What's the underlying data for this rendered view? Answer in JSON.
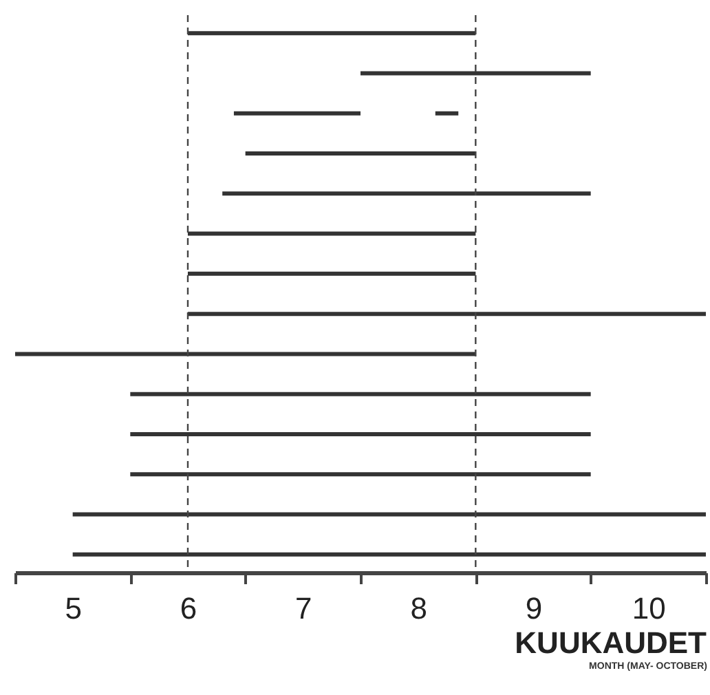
{
  "chart_data": {
    "type": "bar",
    "orientation": "horizontal",
    "xlabel": "KUUKAUDET",
    "annotations": [
      "MONTH (MAY- OCTOBER)"
    ],
    "categories": [
      null,
      null,
      null,
      null,
      null,
      null,
      null,
      null,
      null,
      null,
      null,
      null,
      null,
      null
    ],
    "series": [
      {
        "color": "#333333",
        "base": [
          6.0,
          7.5,
          6.4,
          6.5,
          6.3,
          6.0,
          6.0,
          6.0,
          4.5,
          5.5,
          5.5,
          5.5,
          5.0,
          5.0
        ],
        "values": [
          2.5,
          2.0,
          1.1,
          2.0,
          3.2,
          2.5,
          2.5,
          4.5,
          4.0,
          4.0,
          4.0,
          4.0,
          5.5,
          5.5
        ]
      },
      {
        "color": "#333333",
        "base": [
          null,
          null,
          8.15,
          null,
          null,
          null,
          null,
          null,
          null,
          null,
          null,
          null,
          null,
          null
        ],
        "values": [
          null,
          null,
          0.2,
          null,
          null,
          null,
          null,
          null,
          null,
          null,
          null,
          null,
          null,
          null
        ]
      }
    ],
    "xlim": [
      4.5,
      10.5
    ],
    "xticks": [
      {
        "value": 4.5,
        "label": null
      },
      5,
      {
        "value": 5.5,
        "label": null
      },
      6,
      {
        "value": 6.5,
        "label": null
      },
      7,
      {
        "value": 7.5,
        "label": null
      },
      8,
      {
        "value": 8.5,
        "label": null
      },
      9,
      {
        "value": 9.5,
        "label": null
      },
      10,
      {
        "value": 10.5,
        "label": null
      }
    ],
    "ref_lines": [
      {
        "axis": "x",
        "value": 6.0,
        "color": "#444444",
        "line_style": "dashed"
      },
      {
        "axis": "x",
        "value": 8.5,
        "color": "#444444",
        "line_style": "dashed"
      }
    ],
    "tick_labels": "x",
    "grid": false
  }
}
